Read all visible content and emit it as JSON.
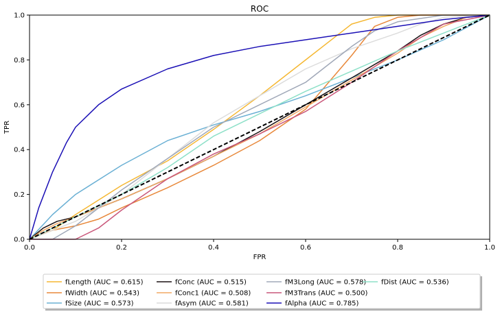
{
  "chart_data": {
    "type": "line",
    "title": "ROC",
    "xlabel": "FPR",
    "ylabel": "TPR",
    "xlim": [
      0,
      1
    ],
    "ylim": [
      0,
      1
    ],
    "xticks": [
      "0.0",
      "0.2",
      "0.4",
      "0.6",
      "0.8",
      "1.0"
    ],
    "yticks": [
      "0.0",
      "0.2",
      "0.4",
      "0.6",
      "0.8",
      "1.0"
    ],
    "grid": false,
    "legend_position": "bottom-center",
    "legend_columns": 4,
    "series": [
      {
        "name": "fLength (AUC = 0.615)",
        "color": "#f5b731",
        "x": [
          0,
          0.05,
          0.1,
          0.2,
          0.3,
          0.4,
          0.5,
          0.6,
          0.65,
          0.7,
          0.75,
          0.8,
          0.9,
          1.0
        ],
        "y": [
          0,
          0.04,
          0.11,
          0.24,
          0.35,
          0.49,
          0.64,
          0.8,
          0.88,
          0.96,
          0.99,
          1.0,
          1.0,
          1.0
        ]
      },
      {
        "name": "fWidth (AUC = 0.543)",
        "color": "#e8883a",
        "x": [
          0,
          0.02,
          0.05,
          0.1,
          0.15,
          0.2,
          0.3,
          0.4,
          0.5,
          0.6,
          0.7,
          0.75,
          0.8,
          0.85,
          0.9,
          1.0
        ],
        "y": [
          0,
          0.02,
          0.04,
          0.06,
          0.09,
          0.14,
          0.23,
          0.33,
          0.44,
          0.58,
          0.82,
          0.95,
          0.99,
          1.0,
          1.0,
          1.0
        ]
      },
      {
        "name": "fSize (AUC = 0.573)",
        "color": "#6ab0d4",
        "x": [
          0,
          0.05,
          0.1,
          0.2,
          0.3,
          0.4,
          0.5,
          0.6,
          0.7,
          0.8,
          0.9,
          1.0
        ],
        "y": [
          0,
          0.11,
          0.2,
          0.33,
          0.44,
          0.51,
          0.57,
          0.64,
          0.72,
          0.8,
          0.89,
          1.0
        ]
      },
      {
        "name": "fConc (AUC = 0.515)",
        "color": "#1a1012",
        "x": [
          0,
          0.03,
          0.06,
          0.1,
          0.2,
          0.3,
          0.4,
          0.5,
          0.6,
          0.7,
          0.8,
          0.85,
          0.9,
          0.95,
          1.0
        ],
        "y": [
          0,
          0.05,
          0.08,
          0.1,
          0.18,
          0.27,
          0.37,
          0.48,
          0.6,
          0.72,
          0.84,
          0.91,
          0.96,
          0.99,
          1.0
        ]
      },
      {
        "name": "fConc1 (AUC = 0.508)",
        "color": "#f2a862",
        "x": [
          0,
          0.03,
          0.06,
          0.1,
          0.2,
          0.3,
          0.4,
          0.5,
          0.6,
          0.7,
          0.8,
          0.85,
          0.9,
          0.95,
          1.0
        ],
        "y": [
          0,
          0.04,
          0.07,
          0.1,
          0.18,
          0.27,
          0.37,
          0.47,
          0.59,
          0.71,
          0.83,
          0.9,
          0.95,
          0.99,
          1.0
        ]
      },
      {
        "name": "fAsym (AUC = 0.581)",
        "color": "#dcdcdc",
        "x": [
          0,
          0.1,
          0.2,
          0.3,
          0.4,
          0.5,
          0.6,
          0.7,
          0.8,
          0.85,
          0.9,
          1.0
        ],
        "y": [
          0,
          0.08,
          0.2,
          0.36,
          0.52,
          0.64,
          0.76,
          0.85,
          0.92,
          0.96,
          0.99,
          1.0
        ]
      },
      {
        "name": "fM3Long (AUC = 0.578)",
        "color": "#a0a8b8",
        "x": [
          0,
          0.05,
          0.1,
          0.2,
          0.3,
          0.4,
          0.5,
          0.6,
          0.65,
          0.7,
          0.75,
          0.8,
          0.9,
          1.0
        ],
        "y": [
          0,
          0.0,
          0.06,
          0.22,
          0.36,
          0.5,
          0.6,
          0.7,
          0.78,
          0.86,
          0.93,
          0.97,
          1.0,
          1.0
        ]
      },
      {
        "name": "fM3Trans (AUC = 0.500)",
        "color": "#c9577a",
        "x": [
          0,
          0.1,
          0.15,
          0.2,
          0.25,
          0.3,
          0.4,
          0.5,
          0.6,
          0.7,
          0.8,
          0.9,
          1.0
        ],
        "y": [
          0,
          0.0,
          0.05,
          0.13,
          0.2,
          0.27,
          0.38,
          0.47,
          0.57,
          0.7,
          0.84,
          0.96,
          1.0
        ]
      },
      {
        "name": "fAlpha (AUC = 0.785)",
        "color": "#1a0fb5",
        "x": [
          0,
          0.02,
          0.05,
          0.08,
          0.1,
          0.15,
          0.2,
          0.3,
          0.4,
          0.5,
          0.6,
          0.7,
          0.8,
          0.9,
          1.0
        ],
        "y": [
          0,
          0.14,
          0.3,
          0.43,
          0.5,
          0.6,
          0.67,
          0.76,
          0.82,
          0.86,
          0.89,
          0.92,
          0.95,
          0.98,
          1.0
        ]
      },
      {
        "name": "fDist (AUC = 0.536)",
        "color": "#8de0c8",
        "x": [
          0,
          0.1,
          0.2,
          0.3,
          0.4,
          0.5,
          0.6,
          0.7,
          0.8,
          0.9,
          1.0
        ],
        "y": [
          0,
          0.1,
          0.2,
          0.32,
          0.46,
          0.56,
          0.66,
          0.75,
          0.84,
          0.92,
          1.0
        ]
      }
    ],
    "reference_line": {
      "x": [
        0,
        1
      ],
      "y": [
        0,
        1
      ],
      "color": "#000000",
      "style": "dashed"
    }
  }
}
